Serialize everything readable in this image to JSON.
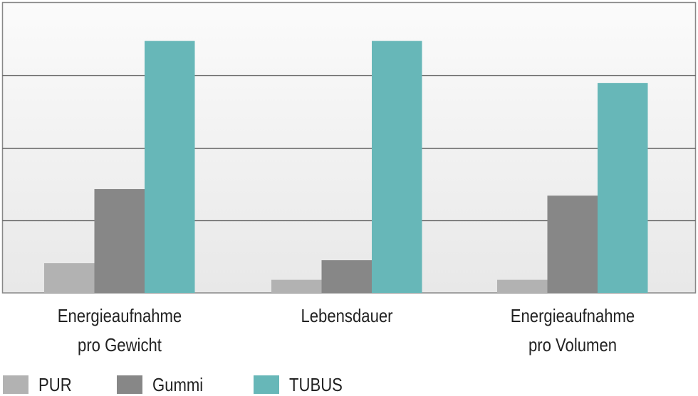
{
  "chart_data": {
    "type": "bar",
    "categories": [
      "Energieaufnahme\npro Gewicht",
      "Lebensdauer",
      "Energieaufnahme\npro Volumen"
    ],
    "series": [
      {
        "name": "PUR",
        "color": "#b2b2b2",
        "values": [
          0.41,
          0.18,
          0.18
        ]
      },
      {
        "name": "Gummi",
        "color": "#878787",
        "values": [
          1.43,
          0.45,
          1.34
        ]
      },
      {
        "name": "TUBUS",
        "color": "#67b7b8",
        "values": [
          3.47,
          3.47,
          2.89
        ]
      }
    ],
    "title": "",
    "xlabel": "",
    "ylabel": "",
    "ylim": [
      0,
      4
    ],
    "y_tick_labels_shown": false,
    "grid": true,
    "legend": "bottom-left"
  }
}
